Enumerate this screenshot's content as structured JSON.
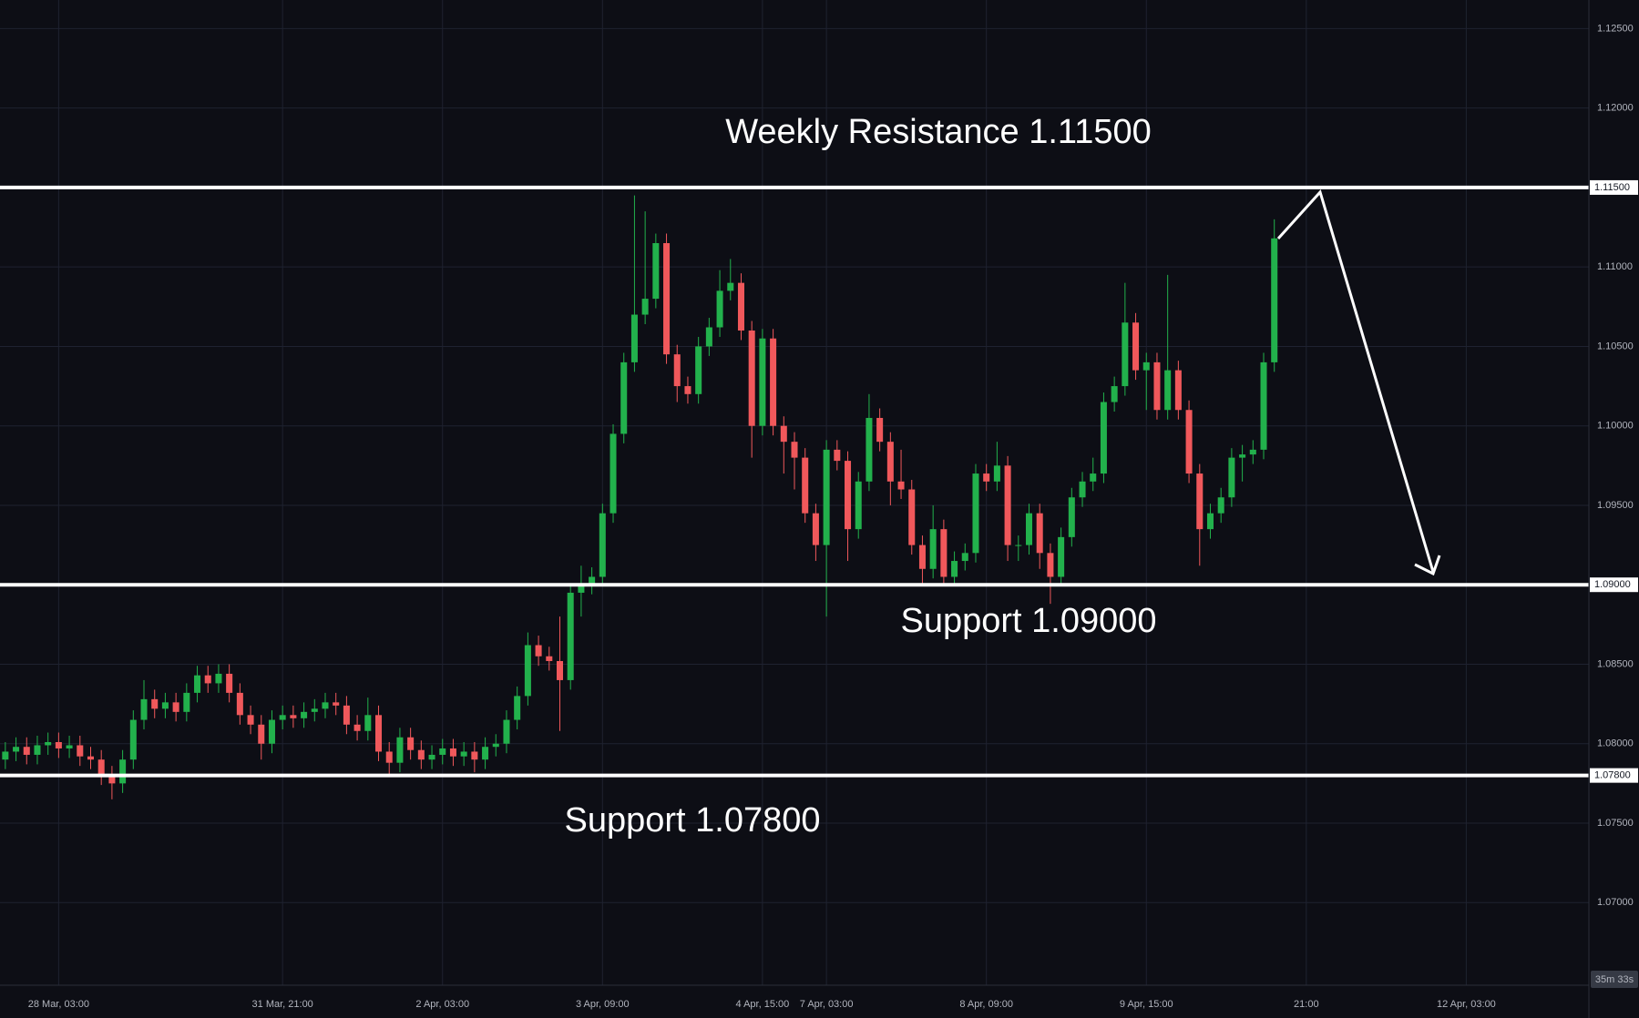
{
  "chart_data": {
    "type": "candlestick",
    "up_color": "#22b14c",
    "down_color": "#f0585b",
    "grid": true,
    "xlim": [
      -0.5,
      148.5
    ],
    "ylim": [
      1.0648,
      1.1268
    ],
    "xticks": [
      {
        "value": 5,
        "label": "28 Mar, 03:00"
      },
      {
        "value": 26,
        "label": "31 Mar, 21:00"
      },
      {
        "value": 41,
        "label": "2 Apr, 03:00"
      },
      {
        "value": 56,
        "label": "3 Apr, 09:00"
      },
      {
        "value": 71,
        "label": "4 Apr, 15:00"
      },
      {
        "value": 77,
        "label": "7 Apr, 03:00"
      },
      {
        "value": 92,
        "label": "8 Apr, 09:00"
      },
      {
        "value": 107,
        "label": "9 Apr, 15:00"
      },
      {
        "value": 122,
        "label": "21:00"
      },
      {
        "value": 137,
        "label": "12 Apr, 03:00"
      }
    ],
    "yticks": [
      {
        "value": 1.07,
        "label": "1.07000"
      },
      {
        "value": 1.075,
        "label": "1.07500"
      },
      {
        "value": 1.08,
        "label": "1.08000"
      },
      {
        "value": 1.085,
        "label": "1.08500"
      },
      {
        "value": 1.095,
        "label": "1.09500"
      },
      {
        "value": 1.1,
        "label": "1.10000"
      },
      {
        "value": 1.105,
        "label": "1.10500"
      },
      {
        "value": 1.11,
        "label": "1.11000"
      },
      {
        "value": 1.12,
        "label": "1.12000"
      },
      {
        "value": 1.125,
        "label": "1.12500"
      }
    ],
    "levels": [
      {
        "value": 1.115,
        "label": "1.11500",
        "text": "Weekly Resistance 1.11500"
      },
      {
        "value": 1.09,
        "label": "1.09000",
        "text": "Support 1.09000"
      },
      {
        "value": 1.078,
        "label": "1.07800",
        "text": "Support 1.07800"
      }
    ],
    "countdown": "35m 33s",
    "x": [
      0,
      1,
      2,
      3,
      4,
      5,
      6,
      7,
      8,
      9,
      10,
      11,
      12,
      13,
      14,
      15,
      16,
      17,
      18,
      19,
      20,
      21,
      22,
      23,
      24,
      25,
      26,
      27,
      28,
      29,
      30,
      31,
      32,
      33,
      34,
      35,
      36,
      37,
      38,
      39,
      40,
      41,
      42,
      43,
      44,
      45,
      46,
      47,
      48,
      49,
      50,
      51,
      52,
      53,
      54,
      55,
      56,
      57,
      58,
      59,
      60,
      61,
      62,
      63,
      64,
      65,
      66,
      67,
      68,
      69,
      70,
      71,
      72,
      73,
      74,
      75,
      76,
      77,
      78,
      79,
      80,
      81,
      82,
      83,
      84,
      85,
      86,
      87,
      88,
      89,
      90,
      91,
      92,
      93,
      94,
      95,
      96,
      97,
      98,
      99,
      100,
      101,
      102,
      103,
      104,
      105,
      106,
      107,
      108,
      109,
      110,
      111,
      112,
      113,
      114,
      115,
      116,
      117,
      118,
      119
    ],
    "open": [
      1.079,
      1.0795,
      1.0798,
      1.0793,
      1.0799,
      1.0801,
      1.0797,
      1.0799,
      1.0792,
      1.079,
      1.078,
      1.0775,
      1.079,
      1.0815,
      1.0828,
      1.0822,
      1.0826,
      1.082,
      1.0832,
      1.0843,
      1.0838,
      1.0844,
      1.0832,
      1.0818,
      1.0812,
      1.08,
      1.0815,
      1.0818,
      1.0816,
      1.082,
      1.0822,
      1.0826,
      1.0824,
      1.0812,
      1.0808,
      1.0818,
      1.0795,
      1.0788,
      1.0804,
      1.0796,
      1.079,
      1.0793,
      1.0797,
      1.0792,
      1.0795,
      1.079,
      1.0798,
      1.08,
      1.0815,
      1.083,
      1.0862,
      1.0855,
      1.0852,
      1.084,
      1.0895,
      1.09,
      1.0905,
      1.0945,
      1.0995,
      1.104,
      1.107,
      1.108,
      1.1115,
      1.1045,
      1.1025,
      1.102,
      1.105,
      1.1062,
      1.1085,
      1.109,
      1.106,
      1.1,
      1.1055,
      1.1,
      1.099,
      1.098,
      1.0945,
      1.0925,
      1.0985,
      1.0978,
      1.0935,
      1.0965,
      1.1005,
      1.099,
      1.0965,
      1.096,
      1.0925,
      1.091,
      1.0935,
      1.0905,
      1.0915,
      1.092,
      1.097,
      1.0965,
      1.0975,
      1.0925,
      1.0925,
      1.0945,
      1.092,
      1.0905,
      1.093,
      1.0955,
      1.0965,
      1.097,
      1.1015,
      1.1025,
      1.1065,
      1.1035,
      1.104,
      1.101,
      1.1035,
      1.101,
      1.097,
      1.0935,
      1.0945,
      1.0955,
      1.098,
      1.0982,
      1.0985,
      1.104
    ],
    "high": [
      1.0801,
      1.0804,
      1.0804,
      1.0805,
      1.0807,
      1.0807,
      1.0805,
      1.0805,
      1.0798,
      1.0796,
      1.0786,
      1.0796,
      1.0821,
      1.084,
      1.0834,
      1.0832,
      1.0832,
      1.0838,
      1.0849,
      1.0849,
      1.085,
      1.085,
      1.0838,
      1.0824,
      1.0818,
      1.0821,
      1.0824,
      1.0824,
      1.0826,
      1.0828,
      1.0832,
      1.0832,
      1.083,
      1.0818,
      1.0829,
      1.0824,
      1.0801,
      1.081,
      1.081,
      1.0802,
      1.0799,
      1.0803,
      1.0803,
      1.0801,
      1.0801,
      1.0804,
      1.0806,
      1.0821,
      1.0836,
      1.087,
      1.0868,
      1.0861,
      1.088,
      1.0901,
      1.0912,
      1.0911,
      1.0951,
      1.1001,
      1.1046,
      1.1145,
      1.1135,
      1.1121,
      1.1121,
      1.1051,
      1.1031,
      1.1056,
      1.1068,
      1.1098,
      1.1105,
      1.1096,
      1.1066,
      1.1061,
      1.1061,
      1.1006,
      1.0996,
      1.0986,
      1.0951,
      1.0991,
      1.0991,
      1.0984,
      1.0971,
      1.102,
      1.1011,
      1.0996,
      1.0985,
      1.0966,
      1.0931,
      1.095,
      1.0941,
      1.0921,
      1.0926,
      1.0976,
      1.0976,
      1.099,
      1.0981,
      1.0931,
      1.0951,
      1.0951,
      1.0926,
      1.0936,
      1.0961,
      1.0971,
      1.098,
      1.1021,
      1.1031,
      1.109,
      1.1071,
      1.1046,
      1.1046,
      1.1095,
      1.1041,
      1.1016,
      1.0976,
      1.0951,
      1.0961,
      1.0986,
      1.0988,
      1.0991,
      1.1046,
      1.113
    ],
    "low": [
      1.0784,
      1.0789,
      1.0787,
      1.0787,
      1.0793,
      1.0791,
      1.0791,
      1.0786,
      1.0784,
      1.0774,
      1.0765,
      1.0769,
      1.0784,
      1.0809,
      1.0816,
      1.0816,
      1.0814,
      1.0814,
      1.0826,
      1.0832,
      1.0832,
      1.0826,
      1.0812,
      1.0806,
      1.079,
      1.0794,
      1.0809,
      1.081,
      1.081,
      1.0814,
      1.0816,
      1.0818,
      1.0806,
      1.0802,
      1.0802,
      1.0789,
      1.078,
      1.0782,
      1.079,
      1.0784,
      1.0784,
      1.0787,
      1.0786,
      1.0786,
      1.0782,
      1.0784,
      1.0792,
      1.0794,
      1.0809,
      1.0824,
      1.0849,
      1.0846,
      1.0808,
      1.0834,
      1.088,
      1.0894,
      1.0899,
      1.0939,
      1.0989,
      1.1034,
      1.1064,
      1.1074,
      1.1039,
      1.1015,
      1.1014,
      1.1014,
      1.1044,
      1.1056,
      1.1079,
      1.1054,
      1.098,
      1.0994,
      1.0994,
      1.097,
      1.096,
      1.0939,
      1.0915,
      1.088,
      1.0972,
      1.0915,
      1.0929,
      1.0959,
      1.0984,
      1.095,
      1.0954,
      1.0919,
      1.09,
      1.0904,
      1.0899,
      1.0899,
      1.0909,
      1.0914,
      1.0959,
      1.0959,
      1.0915,
      1.0915,
      1.0919,
      1.091,
      1.0888,
      1.0899,
      1.0924,
      1.0949,
      1.0959,
      1.0964,
      1.1009,
      1.1019,
      1.1029,
      1.101,
      1.1004,
      1.1004,
      1.1004,
      1.0964,
      1.0912,
      1.0929,
      1.0939,
      1.0949,
      1.0965,
      1.0976,
      1.0979,
      1.1034
    ],
    "close": [
      1.0795,
      1.0798,
      1.0793,
      1.0799,
      1.0801,
      1.0797,
      1.0799,
      1.0792,
      1.079,
      1.078,
      1.0775,
      1.079,
      1.0815,
      1.0828,
      1.0822,
      1.0826,
      1.082,
      1.0832,
      1.0843,
      1.0838,
      1.0844,
      1.0832,
      1.0818,
      1.0812,
      1.08,
      1.0815,
      1.0818,
      1.0816,
      1.082,
      1.0822,
      1.0826,
      1.0824,
      1.0812,
      1.0808,
      1.0818,
      1.0795,
      1.0788,
      1.0804,
      1.0796,
      1.079,
      1.0793,
      1.0797,
      1.0792,
      1.0795,
      1.079,
      1.0798,
      1.08,
      1.0815,
      1.083,
      1.0862,
      1.0855,
      1.0852,
      1.084,
      1.0895,
      1.09,
      1.0905,
      1.0945,
      1.0995,
      1.104,
      1.107,
      1.108,
      1.1115,
      1.1045,
      1.1025,
      1.102,
      1.105,
      1.1062,
      1.1085,
      1.109,
      1.106,
      1.1,
      1.1055,
      1.1,
      1.099,
      1.098,
      1.0945,
      1.0925,
      1.0985,
      1.0978,
      1.0935,
      1.0965,
      1.1005,
      1.099,
      1.0965,
      1.096,
      1.0925,
      1.091,
      1.0935,
      1.0905,
      1.0915,
      1.092,
      1.097,
      1.0965,
      1.0975,
      1.0925,
      1.0925,
      1.0945,
      1.092,
      1.0905,
      1.093,
      1.0955,
      1.0965,
      1.097,
      1.1015,
      1.1025,
      1.1065,
      1.1035,
      1.104,
      1.101,
      1.1035,
      1.101,
      1.097,
      1.0935,
      1.0945,
      1.0955,
      1.098,
      1.0982,
      1.0985,
      1.104,
      1.1118
    ]
  }
}
